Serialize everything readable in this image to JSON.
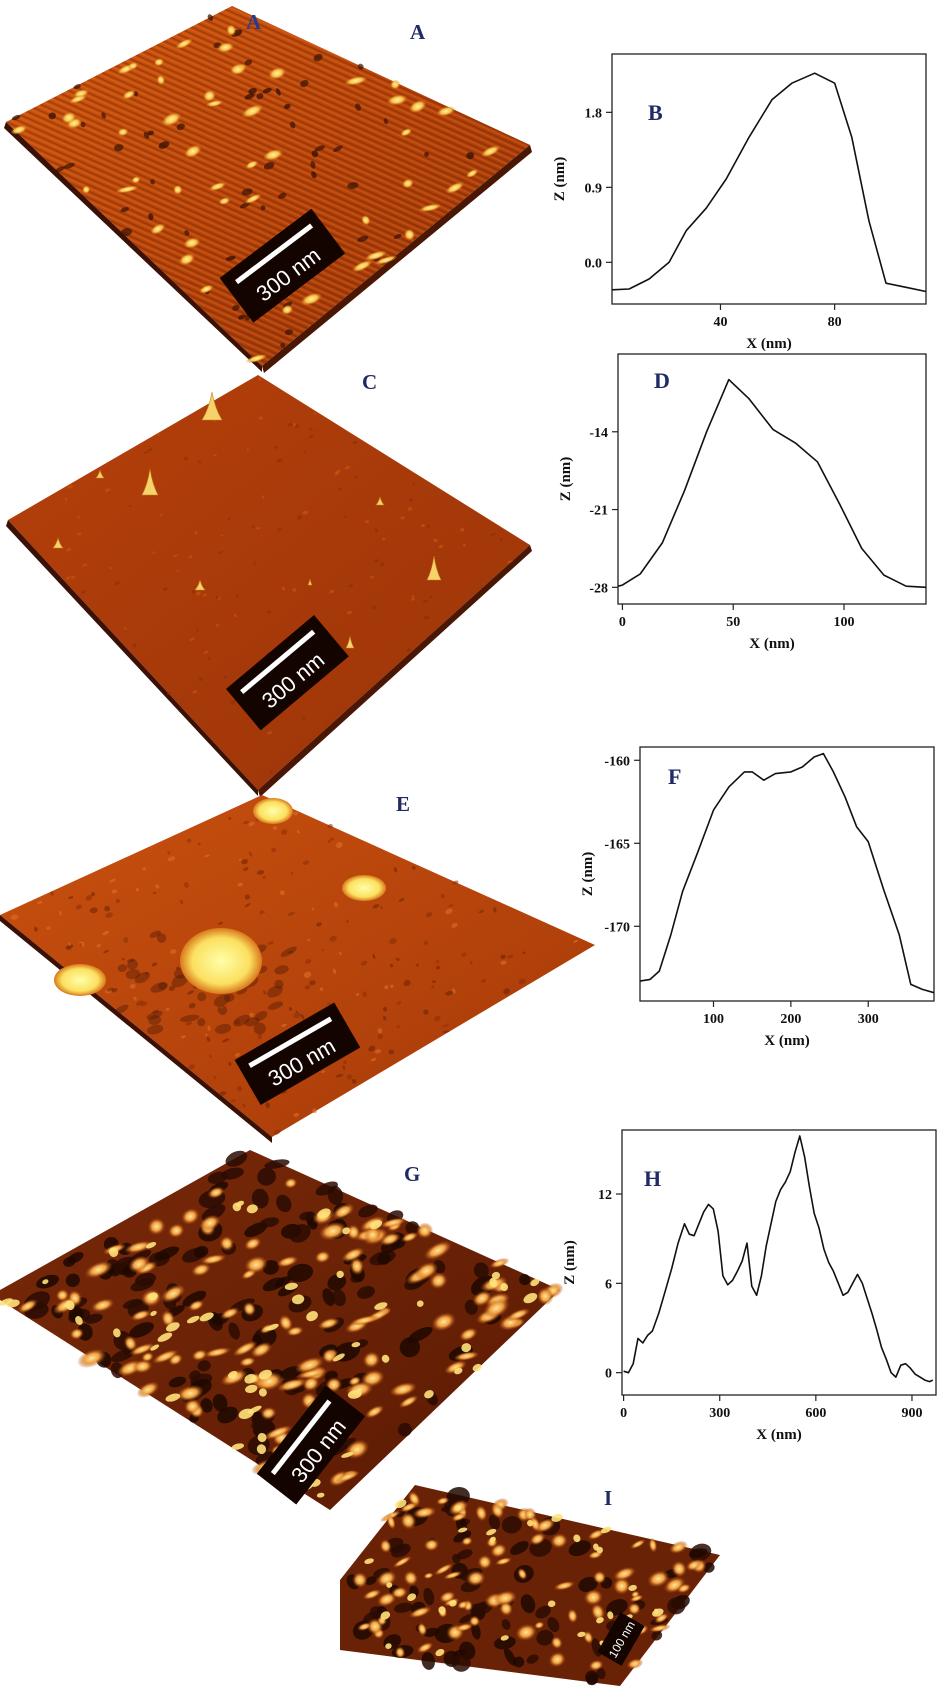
{
  "panels": {
    "A": {
      "label": "A",
      "scalebar": "300 nm"
    },
    "C": {
      "label": "C",
      "scalebar": "300 nm"
    },
    "E": {
      "label": "E",
      "scalebar": "300 nm"
    },
    "G": {
      "label": "G",
      "scalebar": "300 nm"
    },
    "I": {
      "label": "I",
      "scalebar": "100 nm"
    }
  },
  "colors": {
    "afm_dark": "#1e0800",
    "afm_mid": "#c0440c",
    "afm_light": "#ffe066",
    "line": "#111111",
    "label": "#1f2a66"
  },
  "chart_data": [
    {
      "id": "B",
      "label": "B",
      "type": "line",
      "xlabel": "X (nm)",
      "ylabel": "Z (nm)",
      "xlim": [
        2,
        112
      ],
      "ylim": [
        -0.5,
        2.5
      ],
      "xticks": [
        40,
        80
      ],
      "yticks": [
        0.0,
        0.9,
        1.8
      ],
      "ytick_labels": [
        "0.0",
        "0.9",
        "1.8"
      ],
      "x": [
        2,
        8,
        15,
        22,
        28,
        35,
        42,
        50,
        58,
        65,
        73,
        80,
        86,
        92,
        98,
        105,
        112
      ],
      "y": [
        -0.33,
        -0.32,
        -0.2,
        0.0,
        0.38,
        0.65,
        1.0,
        1.5,
        1.95,
        2.15,
        2.27,
        2.15,
        1.5,
        0.5,
        -0.25,
        -0.3,
        -0.35
      ]
    },
    {
      "id": "D",
      "label": "D",
      "type": "line",
      "xlabel": "X (nm)",
      "ylabel": "Z (nm)",
      "xlim": [
        -2,
        137
      ],
      "ylim": [
        -29.5,
        -7
      ],
      "xticks": [
        0,
        50,
        100
      ],
      "yticks": [
        -28,
        -21,
        -14
      ],
      "ytick_labels": [
        "-28",
        "-21",
        "-14"
      ],
      "x": [
        -2,
        0,
        8,
        18,
        28,
        38,
        48,
        57,
        68,
        78,
        88,
        98,
        108,
        118,
        128,
        137
      ],
      "y": [
        -27.9,
        -27.8,
        -26.8,
        -24.0,
        -19.3,
        -14.0,
        -9.3,
        -11.0,
        -13.8,
        -15.0,
        -16.7,
        -20.5,
        -24.5,
        -26.9,
        -27.9,
        -28.0
      ]
    },
    {
      "id": "F",
      "label": "F",
      "type": "line",
      "xlabel": "X (nm)",
      "ylabel": "Z (nm)",
      "xlim": [
        5,
        385
      ],
      "ylim": [
        -174.5,
        -159.2
      ],
      "xticks": [
        100,
        200,
        300
      ],
      "yticks": [
        -170,
        -165,
        -160
      ],
      "ytick_labels": [
        "-170",
        "-165",
        "-160"
      ],
      "x": [
        5,
        18,
        30,
        45,
        60,
        80,
        100,
        120,
        140,
        150,
        165,
        180,
        200,
        215,
        230,
        242,
        255,
        270,
        285,
        300,
        320,
        340,
        355,
        370,
        385
      ],
      "y": [
        -173.3,
        -173.2,
        -172.7,
        -170.5,
        -167.9,
        -165.5,
        -163.0,
        -161.6,
        -160.7,
        -160.7,
        -161.2,
        -160.8,
        -160.7,
        -160.4,
        -159.8,
        -159.6,
        -160.7,
        -162.2,
        -164.0,
        -164.9,
        -167.8,
        -170.5,
        -173.5,
        -173.8,
        -174.0
      ]
    },
    {
      "id": "H",
      "label": "H",
      "type": "line",
      "xlabel": "X (nm)",
      "ylabel": "Z (nm)",
      "xlim": [
        -5,
        975
      ],
      "ylim": [
        -1.5,
        16.3
      ],
      "xticks": [
        0,
        300,
        600,
        900
      ],
      "yticks": [
        0,
        6,
        12
      ],
      "ytick_labels": [
        "0",
        "6",
        "12"
      ],
      "x": [
        0,
        15,
        30,
        45,
        60,
        75,
        90,
        110,
        130,
        150,
        170,
        190,
        205,
        220,
        235,
        250,
        265,
        280,
        295,
        310,
        325,
        340,
        355,
        370,
        385,
        400,
        415,
        430,
        445,
        460,
        475,
        490,
        505,
        520,
        535,
        550,
        565,
        580,
        595,
        610,
        625,
        640,
        655,
        670,
        685,
        700,
        715,
        730,
        745,
        760,
        775,
        790,
        805,
        820,
        835,
        850,
        865,
        880,
        895,
        910,
        925,
        940,
        955,
        965
      ],
      "y": [
        0.1,
        0.0,
        0.6,
        2.3,
        2.0,
        2.5,
        2.8,
        4.0,
        5.5,
        7.0,
        8.7,
        10.0,
        9.3,
        9.2,
        10.0,
        10.8,
        11.3,
        11.0,
        9.5,
        6.5,
        5.9,
        6.2,
        6.8,
        7.5,
        8.7,
        5.8,
        5.2,
        6.5,
        8.5,
        10.0,
        11.5,
        12.3,
        12.8,
        13.5,
        14.8,
        15.9,
        14.5,
        12.5,
        10.7,
        9.7,
        8.3,
        7.4,
        6.8,
        6.0,
        5.2,
        5.4,
        6.0,
        6.6,
        6.0,
        5.0,
        4.0,
        2.9,
        1.7,
        0.9,
        0.0,
        -0.3,
        0.5,
        0.6,
        0.3,
        -0.1,
        -0.3,
        -0.5,
        -0.6,
        -0.5
      ]
    }
  ]
}
